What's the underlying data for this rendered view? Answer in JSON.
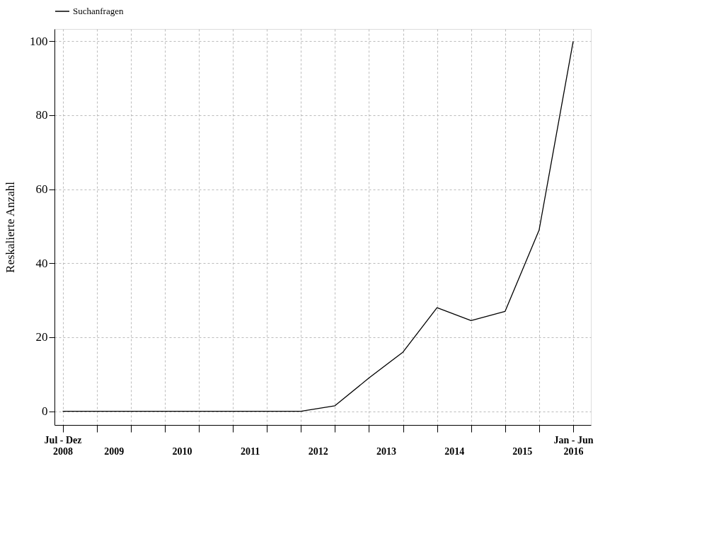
{
  "chart_data": {
    "type": "line",
    "x": [
      2008.5,
      2009.0,
      2009.5,
      2010.0,
      2010.5,
      2011.0,
      2011.5,
      2012.0,
      2012.5,
      2013.0,
      2013.5,
      2014.0,
      2014.5,
      2015.0,
      2015.5,
      2016.0
    ],
    "series": [
      {
        "name": "Suchanfragen",
        "color": "#000000",
        "values": [
          0,
          0,
          0,
          0,
          0,
          0,
          0,
          0,
          1.5,
          9,
          16,
          28,
          24.5,
          27,
          49,
          100
        ]
      }
    ],
    "ylabel": "Reskalierte Anzahl",
    "xlim": [
      2008.38,
      2016.26
    ],
    "xticks": [
      {
        "value": 2008.5,
        "label": "Jul - Dez\n2008"
      },
      {
        "value": 2009.0,
        "label": null
      },
      {
        "value": 2009.25,
        "label": "2009"
      },
      {
        "value": 2009.5,
        "label": null
      },
      {
        "value": 2010.0,
        "label": null
      },
      {
        "value": 2010.25,
        "label": "2010"
      },
      {
        "value": 2010.5,
        "label": null
      },
      {
        "value": 2011.0,
        "label": null
      },
      {
        "value": 2011.25,
        "label": "2011"
      },
      {
        "value": 2011.5,
        "label": null
      },
      {
        "value": 2012.0,
        "label": null
      },
      {
        "value": 2012.25,
        "label": "2012"
      },
      {
        "value": 2012.5,
        "label": null
      },
      {
        "value": 2013.0,
        "label": null
      },
      {
        "value": 2013.25,
        "label": "2013"
      },
      {
        "value": 2013.5,
        "label": null
      },
      {
        "value": 2014.0,
        "label": null
      },
      {
        "value": 2014.25,
        "label": "2014"
      },
      {
        "value": 2014.5,
        "label": null
      },
      {
        "value": 2015.0,
        "label": null
      },
      {
        "value": 2015.25,
        "label": "2015"
      },
      {
        "value": 2015.5,
        "label": null
      },
      {
        "value": 2016.0,
        "label": "Jan - Jun\n2016"
      }
    ],
    "ylim": [
      -3.7,
      103.3
    ],
    "yticks": [
      0,
      20,
      40,
      60,
      80,
      100
    ],
    "grid": true,
    "legend": "top",
    "marker": "none",
    "line_style": "solid"
  }
}
